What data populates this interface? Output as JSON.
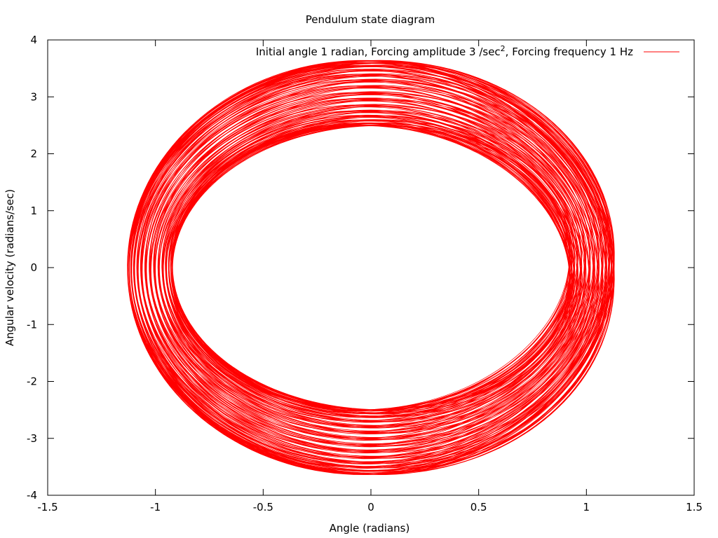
{
  "chart_data": {
    "type": "line",
    "title": "Pendulum state diagram",
    "xlabel": "Angle (radians)",
    "ylabel": "Angular velocity (radians/sec)",
    "xlim": [
      -1.5,
      1.5
    ],
    "ylim": [
      -4,
      4
    ],
    "xticks": [
      "-1.5",
      "-1",
      "-0.5",
      "0",
      "0.5",
      "1",
      "1.5"
    ],
    "yticks": [
      "-4",
      "-3",
      "-2",
      "-1",
      "0",
      "1",
      "2",
      "3",
      "4"
    ],
    "legend_position": "top-right",
    "legend": {
      "prefix": "Initial angle 1 radian, Forcing amplitude 3 /sec",
      "superscript": "2",
      "suffix": ", Forcing frequency 1 Hz"
    },
    "series": [
      {
        "color": "#ff0000",
        "description": "trajectory filling an annulus between an inner and outer orbit",
        "outer_orbit": {
          "angle_max": 1.13,
          "velocity_max": 3.64
        },
        "inner_orbit": {
          "angle_max": 0.92,
          "velocity_max": 2.49
        }
      }
    ]
  }
}
